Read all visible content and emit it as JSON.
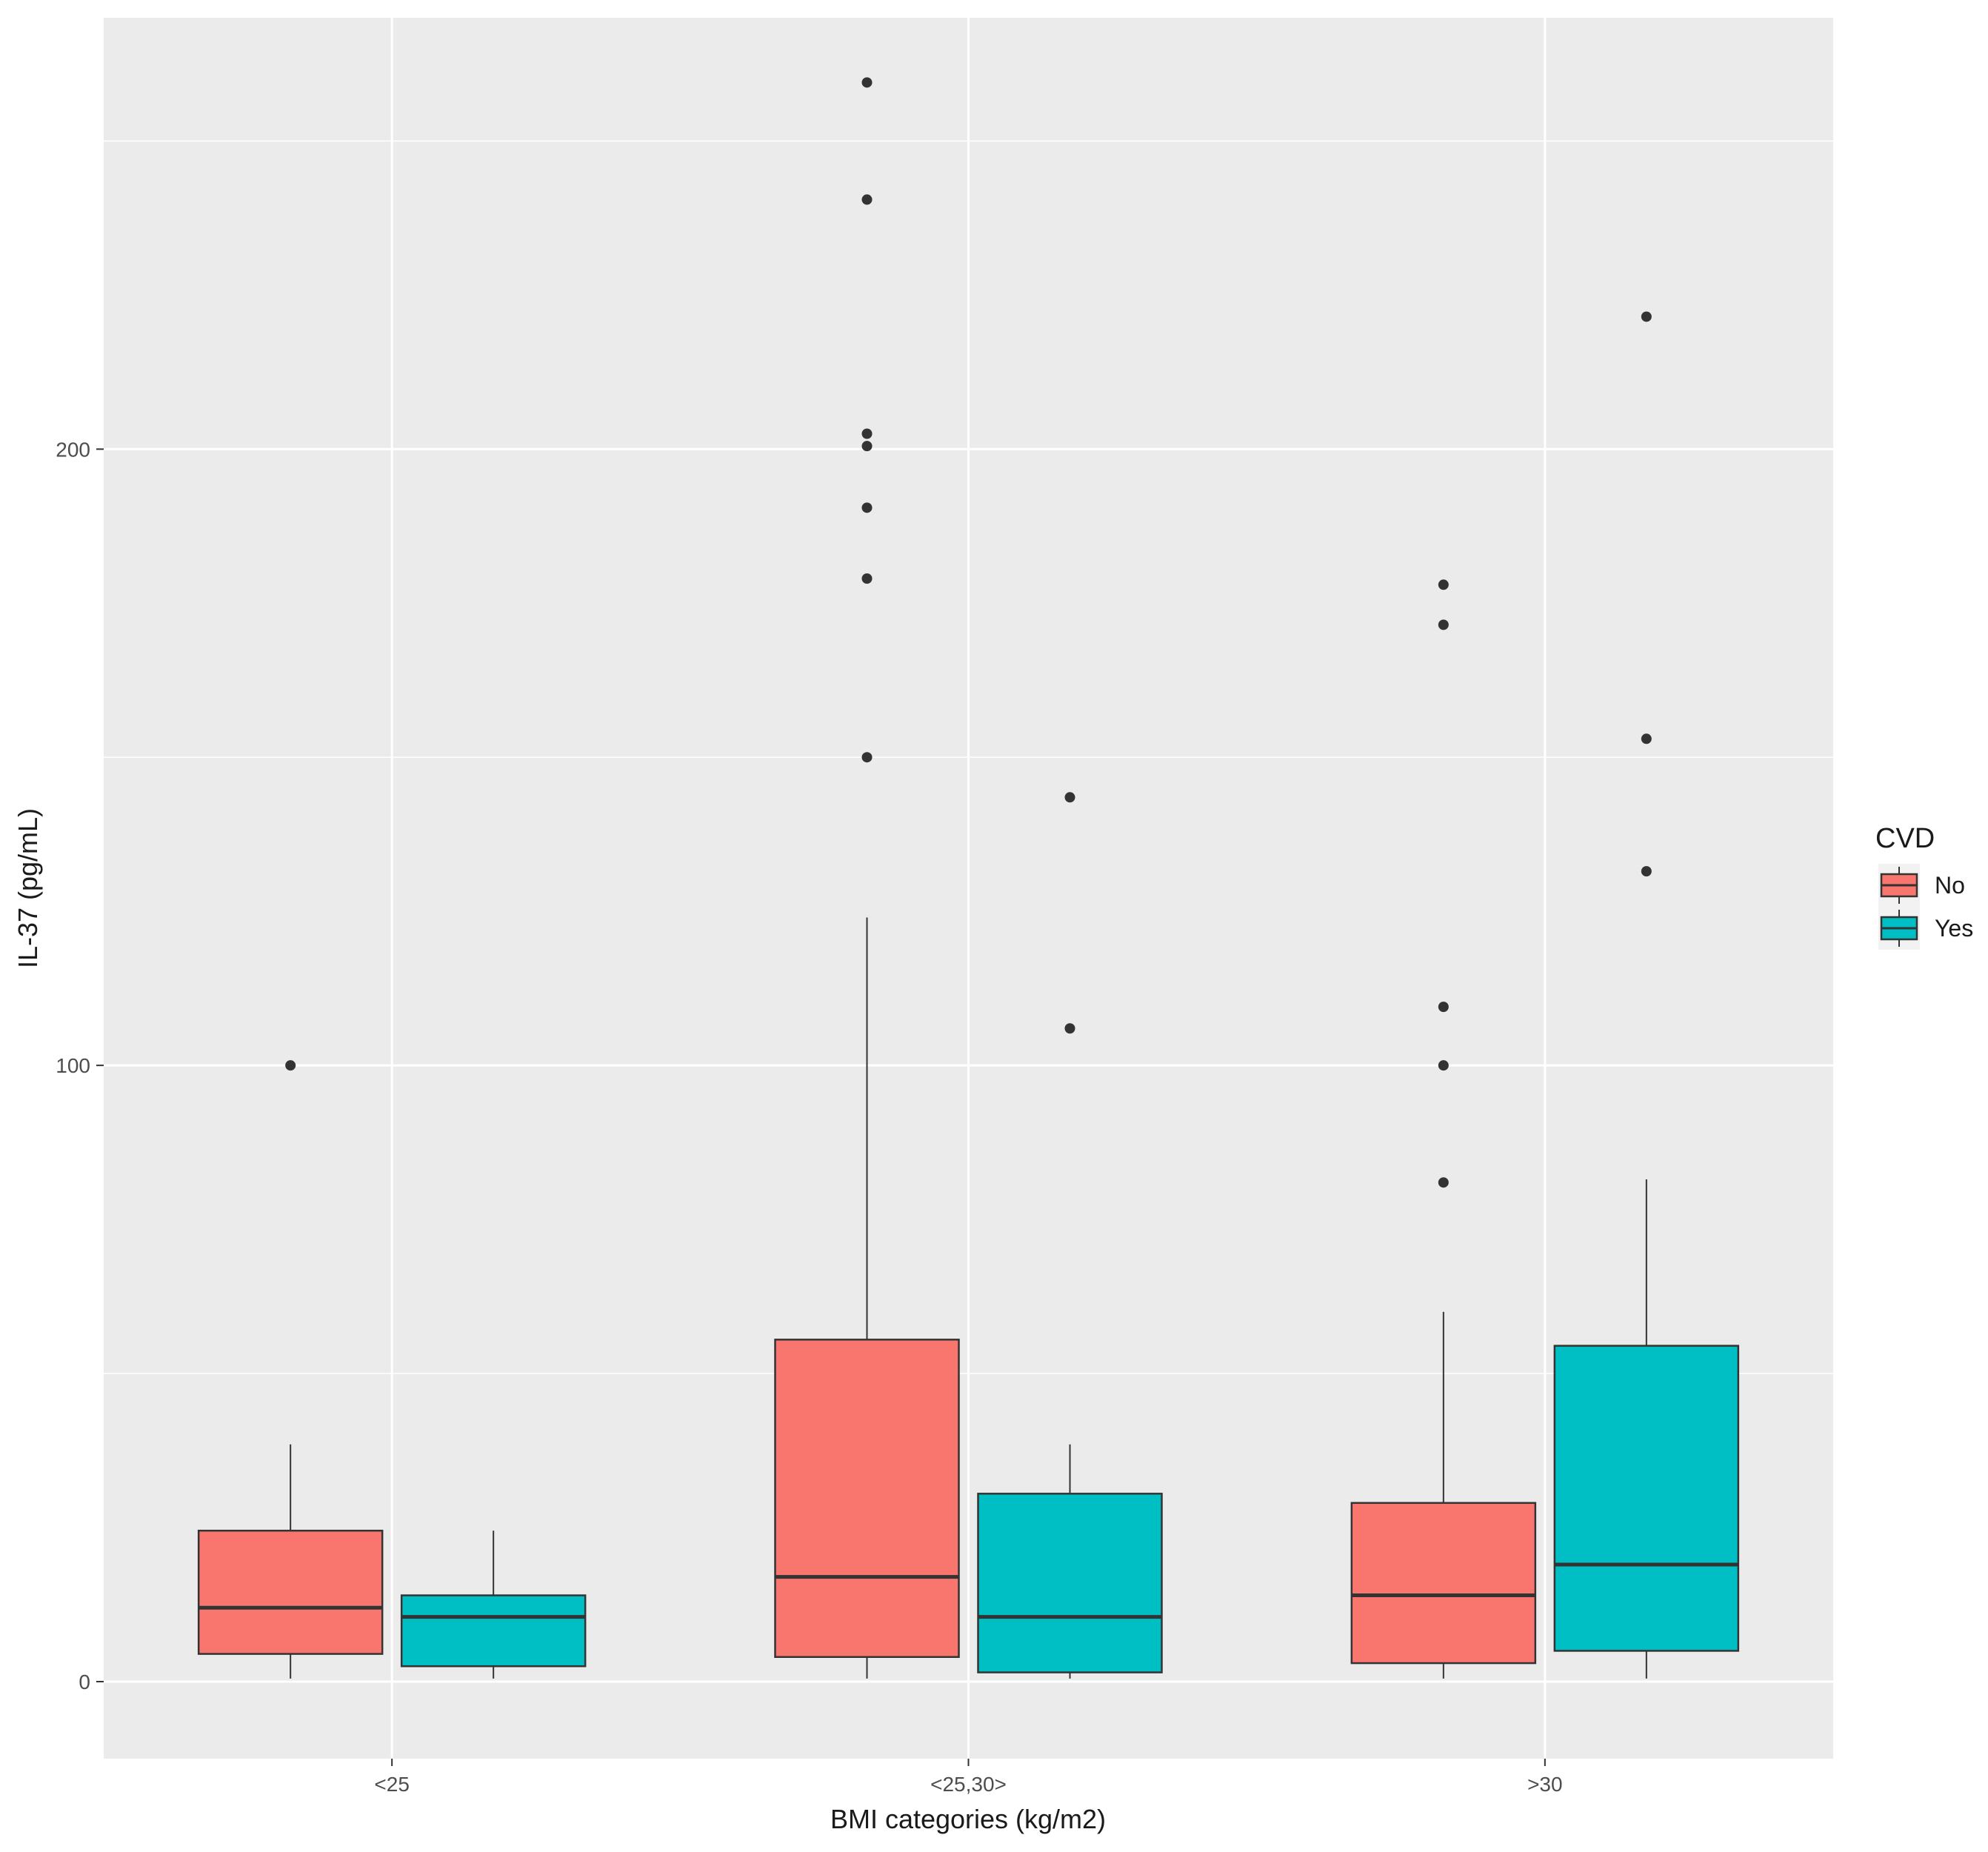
{
  "chart_data": {
    "type": "box",
    "xlabel": "BMI categories (kg/m2)",
    "ylabel": "IL-37 (pg/mL)",
    "categories": [
      "<25",
      "<25,30>",
      ">30"
    ],
    "y_ticks": [
      0,
      100,
      200
    ],
    "ylim": [
      -12.5,
      270
    ],
    "grid": true,
    "legend": {
      "title": "CVD",
      "position": "right"
    },
    "series": [
      {
        "name": "No",
        "color": "#F8766D",
        "boxes": [
          {
            "whisker_low": 0.5,
            "q1": 4.5,
            "median": 12,
            "q3": 24.5,
            "whisker_high": 38.5,
            "outliers": [
              100
            ]
          },
          {
            "whisker_low": 0.5,
            "q1": 4,
            "median": 17,
            "q3": 55.5,
            "whisker_high": 124,
            "outliers": [
              150,
              179,
              190.5,
              200.5,
              202.5,
              240.5,
              259.5
            ]
          },
          {
            "whisker_low": 0.5,
            "q1": 3,
            "median": 14,
            "q3": 29,
            "whisker_high": 60,
            "outliers": [
              81,
              100,
              109.5,
              171.5,
              178
            ]
          }
        ]
      },
      {
        "name": "Yes",
        "color": "#00BFC4",
        "boxes": [
          {
            "whisker_low": 0.5,
            "q1": 2.5,
            "median": 10.5,
            "q3": 14,
            "whisker_high": 24.5,
            "outliers": []
          },
          {
            "whisker_low": 0.5,
            "q1": 1.5,
            "median": 10.5,
            "q3": 30.5,
            "whisker_high": 38.5,
            "outliers": [
              106,
              143.5
            ]
          },
          {
            "whisker_low": 0.5,
            "q1": 5,
            "median": 19,
            "q3": 54.5,
            "whisker_high": 81.5,
            "outliers": [
              131.5,
              153,
              221.5
            ]
          }
        ]
      }
    ]
  }
}
